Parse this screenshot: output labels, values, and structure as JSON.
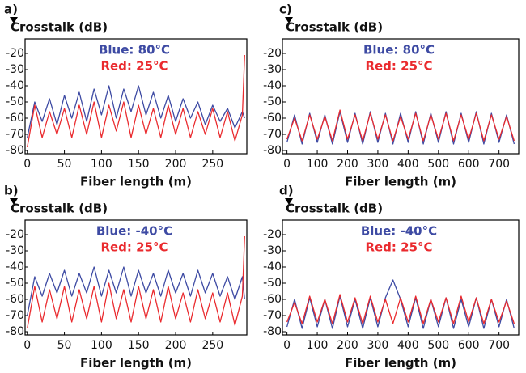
{
  "chart_data": [
    {
      "type": "line",
      "label": "a)",
      "ylabel": "Crosstalk (dB)",
      "xlabel": "Fiber length (m)",
      "x": [
        0,
        10,
        20,
        30,
        40,
        50,
        60,
        70,
        80,
        90,
        100,
        110,
        120,
        130,
        140,
        150,
        160,
        170,
        180,
        190,
        200,
        210,
        220,
        230,
        240,
        250,
        260,
        270,
        280,
        290,
        293
      ],
      "series": [
        {
          "name": "Blue: 80°C",
          "color": "#3d4aa3",
          "values": [
            -72,
            -50,
            -62,
            -48,
            -64,
            -46,
            -60,
            -44,
            -62,
            -42,
            -58,
            -40,
            -60,
            -42,
            -56,
            -40,
            -58,
            -44,
            -60,
            -46,
            -62,
            -48,
            -60,
            -50,
            -64,
            -52,
            -62,
            -54,
            -66,
            -56,
            -60
          ]
        },
        {
          "name": "Red: 25°C",
          "color": "#ea2a2e",
          "values": [
            -78,
            -52,
            -72,
            -56,
            -70,
            -54,
            -72,
            -52,
            -70,
            -50,
            -72,
            -52,
            -68,
            -50,
            -72,
            -52,
            -70,
            -54,
            -72,
            -52,
            -70,
            -54,
            -72,
            -56,
            -70,
            -54,
            -72,
            -56,
            -74,
            -58,
            -21
          ]
        }
      ],
      "xlim": [
        -3,
        296
      ],
      "xticks": [
        0,
        50,
        100,
        150,
        200,
        250
      ],
      "ylim": [
        -82,
        -11
      ],
      "yticks": [
        -20,
        -30,
        -40,
        -50,
        -60,
        -70,
        -80
      ]
    },
    {
      "type": "line",
      "label": "c)",
      "ylabel": "Crosstalk (dB)",
      "xlabel": "Fiber length (m)",
      "x": [
        0,
        25,
        50,
        75,
        100,
        125,
        150,
        175,
        200,
        225,
        250,
        275,
        300,
        325,
        350,
        375,
        400,
        425,
        450,
        475,
        500,
        525,
        550,
        575,
        600,
        625,
        650,
        675,
        700,
        725,
        750
      ],
      "series": [
        {
          "name": "Blue: 80°C",
          "color": "#3d4aa3",
          "values": [
            -75,
            -58,
            -76,
            -57,
            -75,
            -58,
            -76,
            -56,
            -75,
            -57,
            -76,
            -56,
            -75,
            -57,
            -76,
            -57,
            -75,
            -56,
            -76,
            -57,
            -75,
            -56,
            -76,
            -57,
            -75,
            -56,
            -76,
            -57,
            -75,
            -58,
            -76
          ]
        },
        {
          "name": "Red: 25°C",
          "color": "#ea2a2e",
          "values": [
            -73,
            -60,
            -74,
            -58,
            -73,
            -59,
            -74,
            -55,
            -73,
            -58,
            -74,
            -57,
            -73,
            -58,
            -74,
            -59,
            -73,
            -57,
            -74,
            -58,
            -73,
            -57,
            -74,
            -58,
            -73,
            -57,
            -74,
            -58,
            -73,
            -59,
            -74
          ]
        }
      ],
      "xlim": [
        -15,
        765
      ],
      "xticks": [
        0,
        100,
        200,
        300,
        400,
        500,
        600,
        700
      ],
      "ylim": [
        -82,
        -11
      ],
      "yticks": [
        -20,
        -30,
        -40,
        -50,
        -60,
        -70,
        -80
      ]
    },
    {
      "type": "line",
      "label": "b)",
      "ylabel": "Crosstalk (dB)",
      "xlabel": "Fiber length (m)",
      "x": [
        0,
        10,
        20,
        30,
        40,
        50,
        60,
        70,
        80,
        90,
        100,
        110,
        120,
        130,
        140,
        150,
        160,
        170,
        180,
        190,
        200,
        210,
        220,
        230,
        240,
        250,
        260,
        270,
        280,
        290,
        293
      ],
      "series": [
        {
          "name": "Blue: -40°C",
          "color": "#3d4aa3",
          "values": [
            -70,
            -46,
            -58,
            -44,
            -56,
            -42,
            -58,
            -44,
            -56,
            -40,
            -58,
            -42,
            -56,
            -40,
            -58,
            -42,
            -56,
            -44,
            -58,
            -42,
            -56,
            -44,
            -58,
            -42,
            -56,
            -44,
            -58,
            -46,
            -60,
            -46,
            -60
          ]
        },
        {
          "name": "Red: 25°C",
          "color": "#ea2a2e",
          "values": [
            -78,
            -52,
            -74,
            -54,
            -72,
            -52,
            -74,
            -54,
            -72,
            -52,
            -74,
            -50,
            -72,
            -54,
            -74,
            -52,
            -72,
            -54,
            -74,
            -52,
            -72,
            -56,
            -74,
            -54,
            -72,
            -56,
            -74,
            -56,
            -76,
            -58,
            -21
          ]
        }
      ],
      "xlim": [
        -3,
        296
      ],
      "xticks": [
        0,
        50,
        100,
        150,
        200,
        250
      ],
      "ylim": [
        -82,
        -11
      ],
      "yticks": [
        -20,
        -30,
        -40,
        -50,
        -60,
        -70,
        -80
      ]
    },
    {
      "type": "line",
      "label": "d)",
      "ylabel": "Crosstalk (dB)",
      "xlabel": "Fiber length (m)",
      "x": [
        0,
        25,
        50,
        75,
        100,
        125,
        150,
        175,
        200,
        225,
        250,
        275,
        300,
        325,
        350,
        375,
        400,
        425,
        450,
        475,
        500,
        525,
        550,
        575,
        600,
        625,
        650,
        675,
        700,
        725,
        750
      ],
      "series": [
        {
          "name": "Blue: -40°C",
          "color": "#3d4aa3",
          "values": [
            -77,
            -60,
            -78,
            -59,
            -77,
            -60,
            -78,
            -58,
            -77,
            -60,
            -78,
            -59,
            -77,
            -59,
            -48,
            -60,
            -77,
            -59,
            -78,
            -60,
            -77,
            -59,
            -78,
            -60,
            -77,
            -59,
            -78,
            -60,
            -77,
            -60,
            -78
          ]
        },
        {
          "name": "Red: 25°C",
          "color": "#ea2a2e",
          "values": [
            -74,
            -62,
            -75,
            -58,
            -74,
            -60,
            -75,
            -57,
            -74,
            -59,
            -75,
            -58,
            -74,
            -60,
            -75,
            -59,
            -74,
            -58,
            -75,
            -60,
            -74,
            -59,
            -75,
            -58,
            -74,
            -59,
            -75,
            -60,
            -74,
            -61,
            -75
          ]
        }
      ],
      "xlim": [
        -15,
        765
      ],
      "xticks": [
        0,
        100,
        200,
        300,
        400,
        500,
        600,
        700
      ],
      "ylim": [
        -82,
        -11
      ],
      "yticks": [
        -20,
        -30,
        -40,
        -50,
        -60,
        -70,
        -80
      ]
    }
  ]
}
